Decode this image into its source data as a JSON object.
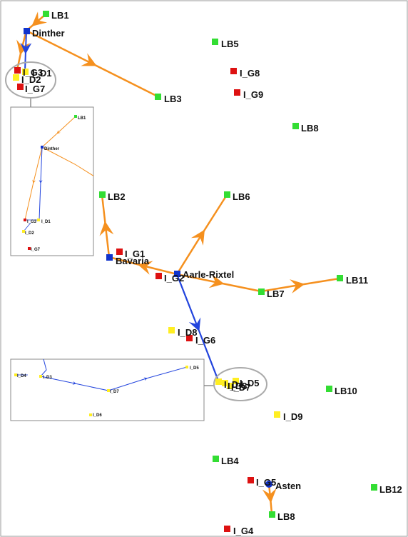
{
  "colors": {
    "lb_node": "#33dd33",
    "gas_node": "#dd1111",
    "demand_node": "#ffee22",
    "hub_node": "#1133cc",
    "orange_edge": "#f5901e",
    "blue_edge": "#2244dd",
    "callout": "#aaaaaa"
  },
  "nodes": {
    "lb1": "LB1",
    "dinther": "Dinther",
    "lb5": "LB5",
    "i_g8": "I_G8",
    "i_g9": "I_G9",
    "i_g3": "I_G3",
    "i_d1": "I_D1",
    "i_d2": "I_D2",
    "i_g7": "I_G7",
    "lb3": "LB3",
    "lb8_top": "LB8",
    "lb2": "LB2",
    "lb6": "LB6",
    "i_g1": "I_G1",
    "bavaria": "Bavaria",
    "aarle_rixtel": "Aarle-Rixtel",
    "i_g2": "I_G2",
    "lb7": "LB7",
    "lb11": "LB11",
    "i_d8": "I_D8",
    "i_g6": "I_G6",
    "i_d4": "I_D4",
    "i_d3": "I_D3",
    "i_d5": "I_D5",
    "i_d7": "I_D7",
    "lb10": "LB10",
    "i_d9": "I_D9",
    "lb4": "LB4",
    "i_g5": "I_G5",
    "asten": "Asten",
    "lb12": "LB12",
    "lb8_bottom": "LB8",
    "i_g4": "I_G4",
    "i_d6": "I_D6"
  }
}
